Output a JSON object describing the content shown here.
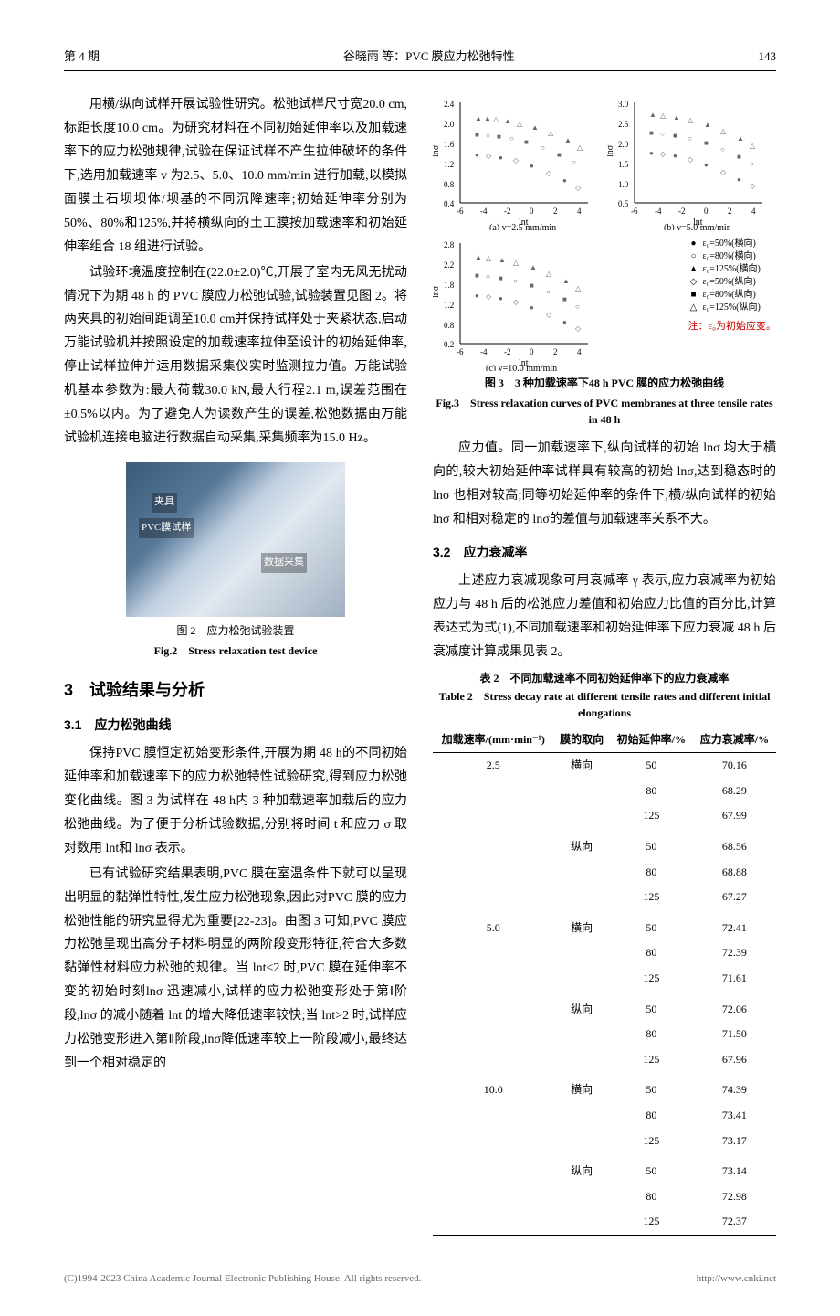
{
  "header": {
    "issue": "第 4 期",
    "authors_title": "谷晓雨 等：PVC 膜应力松弛特性",
    "page": "143"
  },
  "col1": {
    "para1": "用横/纵向试样开展试验性研究。松弛试样尺寸宽20.0 cm,标距长度10.0 cm。为研究材料在不同初始延伸率以及加载速率下的应力松弛规律,试验在保证试样不产生拉伸破坏的条件下,选用加载速率 v 为2.5、5.0、10.0 mm/min 进行加载,以模拟面膜土石坝坝体/坝基的不同沉降速率;初始延伸率分别为50%、80%和125%,并将横纵向的土工膜按加载速率和初始延伸率组合 18 组进行试验。",
    "para2": "试验环境温度控制在(22.0±2.0)℃,开展了室内无风无扰动情况下为期 48 h 的 PVC 膜应力松弛试验,试验装置见图 2。将两夹具的初始间距调至10.0 cm并保持试样处于夹紧状态,启动万能试验机并按照设定的加载速率拉伸至设计的初始延伸率,停止试样拉伸并运用数据采集仪实时监测拉力值。万能试验机基本参数为:最大荷载30.0 kN,最大行程2.1 m,误差范围在±0.5%以内。为了避免人为读数产生的误差,松弛数据由万能试验机连接电脑进行数据自动采集,采集频率为15.0 Hz。",
    "photo_labels": {
      "a": "夹具",
      "b": "PVC膜试样",
      "c": "数据采集"
    },
    "fig2_cn": "图 2　应力松弛试验装置",
    "fig2_en": "Fig.2　Stress relaxation test device",
    "h2": "3　试验结果与分析",
    "h3_1": "3.1　应力松弛曲线",
    "para3": "保持PVC 膜恒定初始变形条件,开展为期 48 h的不同初始延伸率和加载速率下的应力松弛特性试验研究,得到应力松弛变化曲线。图 3 为试样在 48 h内 3 种加载速率加载后的应力松弛曲线。为了便于分析试验数据,分别将时间 t 和应力 σ 取对数用 lnt和 lnσ 表示。",
    "para4": "已有试验研究结果表明,PVC 膜在室温条件下就可以呈现出明显的黏弹性特性,发生应力松弛现象,因此对PVC 膜的应力松弛性能的研究显得尤为重要[22-23]。由图 3 可知,PVC 膜应力松弛呈现出高分子材料明显的两阶段变形特征,符合大多数黏弹性材料应力松弛的规律。当 lnt<2 时,PVC 膜在延伸率不变的初始时刻lnσ 迅速减小,试样的应力松弛变形处于第Ⅰ阶段,lnσ 的减小随着 lnt 的增大降低速率较快;当 lnt>2 时,试样应力松弛变形进入第Ⅱ阶段,lnσ降低速率较上一阶段减小,最终达到一个相对稳定的"
  },
  "col2": {
    "charts": {
      "type": "scatter",
      "xlabel": "lnt",
      "ylabel": "lnσ",
      "background_color": "#ffffff",
      "grid": false,
      "series_markers": [
        "●",
        "○",
        "▲",
        "■",
        "◇",
        "△"
      ],
      "series_colors": [
        "#7a7a7a",
        "#808080",
        "#666666",
        "#5a5a5a",
        "#888888",
        "#707070"
      ],
      "marker_size": 4,
      "panel_a": {
        "sub": "(a) v=2.5 mm/min",
        "xlim": [
          -6,
          4
        ],
        "xticks": [
          -6,
          -4,
          -2,
          0,
          2,
          4
        ],
        "ylim": [
          0.4,
          2.4
        ],
        "yticks": [
          0.4,
          0.8,
          1.2,
          1.6,
          2.0,
          2.4
        ]
      },
      "panel_b": {
        "sub": "(b) v=5.0 mm/min",
        "xlim": [
          -6,
          4
        ],
        "xticks": [
          -6,
          -4,
          -2,
          0,
          2,
          4
        ],
        "ylim": [
          0.5,
          3.0
        ],
        "yticks": [
          0.5,
          1.0,
          1.5,
          2.0,
          2.5,
          3.0
        ]
      },
      "panel_c": {
        "sub": "(c) v=10.0 mm/min",
        "xlim": [
          -6,
          4
        ],
        "xticks": [
          -6,
          -4,
          -2,
          0,
          2,
          4
        ],
        "ylim": [
          0.2,
          2.8
        ],
        "yticks": [
          0.2,
          0.8,
          1.2,
          1.8,
          2.2,
          2.8
        ]
      },
      "legend": [
        {
          "sym": "●",
          "txt": "ε₀=50%(横向)"
        },
        {
          "sym": "○",
          "txt": "ε₀=80%(横向)"
        },
        {
          "sym": "▲",
          "txt": "ε₀=125%(横向)"
        },
        {
          "sym": "◇",
          "txt": "ε₀=50%(纵向)"
        },
        {
          "sym": "■",
          "txt": "ε₀=80%(纵向)"
        },
        {
          "sym": "△",
          "txt": "ε₀=125%(纵向)"
        }
      ],
      "note": "注：ε₀为初始应变。"
    },
    "fig3_cn": "图 3　3 种加载速率下48 h PVC 膜的应力松弛曲线",
    "fig3_en": "Fig.3　Stress relaxation curves of PVC membranes at three tensile rates in 48 h",
    "para5": "应力值。同一加载速率下,纵向试样的初始 lnσ 均大于横向的,较大初始延伸率试样具有较高的初始 lnσ,达到稳态时的 lnσ 也相对较高;同等初始延伸率的条件下,横/纵向试样的初始lnσ 和相对稳定的 lnσ的差值与加载速率关系不大。",
    "h3_2": "3.2　应力衰减率",
    "para6": "上述应力衰减现象可用衰减率 γ 表示,应力衰减率为初始应力与 48 h 后的松弛应力差值和初始应力比值的百分比,计算表达式为式(1),不同加载速率和初始延伸率下应力衰减 48 h 后衰减度计算成果见表 2。",
    "tbl2_cn": "表 2　不同加载速率不同初始延伸率下的应力衰减率",
    "tbl2_en": "Table 2　Stress decay rate at different tensile rates and different initial elongations",
    "table": {
      "columns": [
        "加载速率/(mm·min⁻¹)",
        "膜的取向",
        "初始延伸率/%",
        "应力衰减率/%"
      ],
      "rows": [
        [
          "2.5",
          "横向",
          "50",
          "70.16"
        ],
        [
          "",
          "",
          "80",
          "68.29"
        ],
        [
          "",
          "",
          "125",
          "67.99"
        ],
        [
          "",
          "纵向",
          "50",
          "68.56"
        ],
        [
          "",
          "",
          "80",
          "68.88"
        ],
        [
          "",
          "",
          "125",
          "67.27"
        ],
        [
          "5.0",
          "横向",
          "50",
          "72.41"
        ],
        [
          "",
          "",
          "80",
          "72.39"
        ],
        [
          "",
          "",
          "125",
          "71.61"
        ],
        [
          "",
          "纵向",
          "50",
          "72.06"
        ],
        [
          "",
          "",
          "80",
          "71.50"
        ],
        [
          "",
          "",
          "125",
          "67.96"
        ],
        [
          "10.0",
          "横向",
          "50",
          "74.39"
        ],
        [
          "",
          "",
          "80",
          "73.41"
        ],
        [
          "",
          "",
          "125",
          "73.17"
        ],
        [
          "",
          "纵向",
          "50",
          "73.14"
        ],
        [
          "",
          "",
          "80",
          "72.98"
        ],
        [
          "",
          "",
          "125",
          "72.37"
        ]
      ]
    }
  },
  "footer": {
    "left": "(C)1994-2023 China Academic Journal Electronic Publishing House. All rights reserved.",
    "right": "http://www.cnki.net"
  }
}
